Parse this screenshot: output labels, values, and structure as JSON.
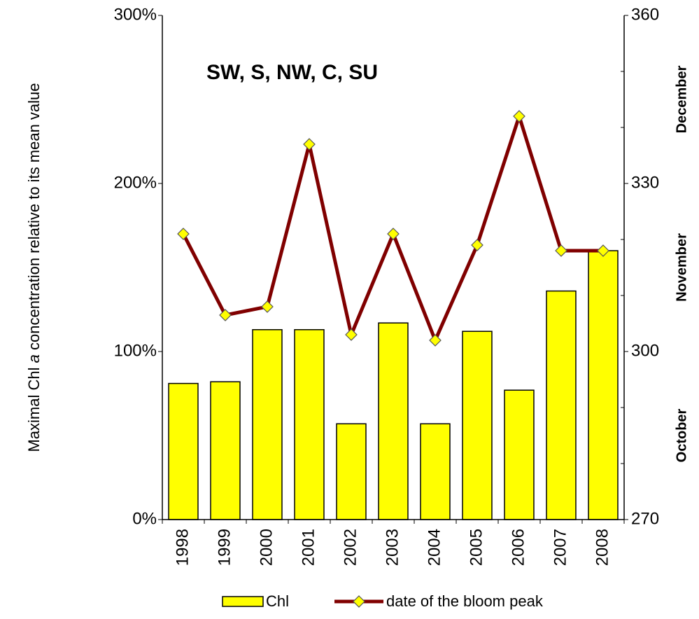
{
  "chart_data": {
    "type": "bar",
    "annotation": "SW, S, NW, C, SU",
    "ylabel": [
      "Maximal Chl ",
      "a",
      " concentration relative to its mean value"
    ],
    "categories": [
      "1998",
      "1999",
      "2000",
      "2001",
      "2002",
      "2003",
      "2004",
      "2005",
      "2006",
      "2007",
      "2008"
    ],
    "series": [
      {
        "name": "Chl",
        "type": "bar",
        "color": "#ffff00",
        "values": [
          81,
          82,
          113,
          113,
          57,
          117,
          57,
          112,
          77,
          136,
          160
        ]
      },
      {
        "name": "date of the bloom peak",
        "type": "line",
        "axis": "y2",
        "color": "#800000",
        "marker_color": "#ffff00",
        "values": [
          321,
          306.5,
          308,
          337,
          303,
          321,
          302,
          319,
          342,
          318,
          318
        ]
      }
    ],
    "ylim": [
      0,
      300
    ],
    "yticks": [
      {
        "value": 0,
        "label": "0%"
      },
      {
        "value": 100,
        "label": "100%"
      },
      {
        "value": 200,
        "label": "200%"
      },
      {
        "value": 300,
        "label": "300%"
      }
    ],
    "y2lim": [
      270,
      360
    ],
    "y2ticks": [
      270,
      300,
      330,
      360
    ],
    "y2minor_ticks": [
      280,
      290,
      310,
      320,
      340,
      350
    ],
    "y2_annotations": [
      {
        "value": 285,
        "label": "October"
      },
      {
        "value": 315,
        "label": "November"
      },
      {
        "value": 345,
        "label": "December"
      }
    ]
  }
}
